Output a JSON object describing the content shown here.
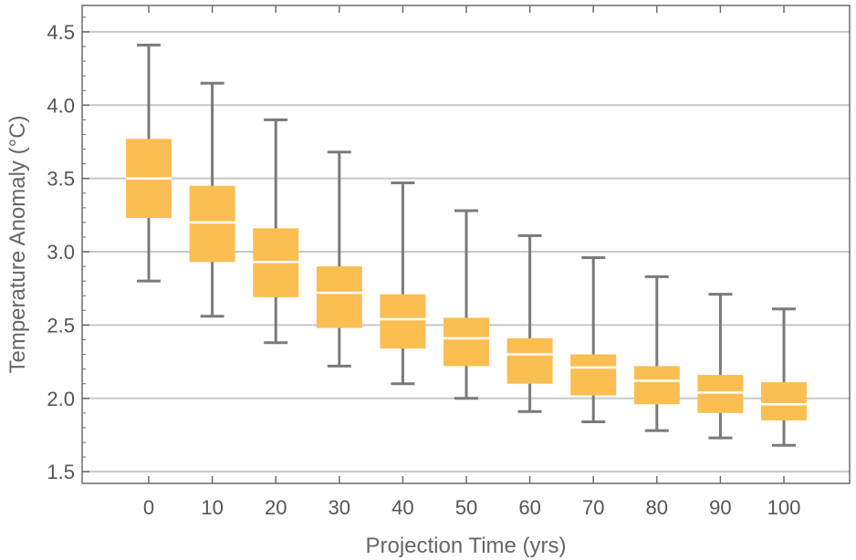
{
  "chart_data": {
    "type": "box",
    "xlabel": "Projection Time (yrs)",
    "ylabel": "Temperature Anomaly (°C)",
    "ylim": [
      1.42,
      4.68
    ],
    "y_ticks": [
      1.5,
      2.0,
      2.5,
      3.0,
      3.5,
      4.0,
      4.5
    ],
    "y_tick_labels": [
      "1.5",
      "2.0",
      "2.5",
      "3.0",
      "3.5",
      "4.0",
      "4.5"
    ],
    "grid": "horizontal",
    "colors": {
      "box": "#FBBE52",
      "whisker": "#7A7A7A",
      "median": "#ffffff",
      "grid": "#c8c8c8",
      "frame": "#6b6b6b"
    },
    "categories": [
      "0",
      "10",
      "20",
      "30",
      "40",
      "50",
      "60",
      "70",
      "80",
      "90",
      "100"
    ],
    "boxes": [
      {
        "min": 2.8,
        "q1": 3.23,
        "median": 3.5,
        "q3": 3.77,
        "max": 4.41
      },
      {
        "min": 2.56,
        "q1": 2.93,
        "median": 3.2,
        "q3": 3.45,
        "max": 4.15
      },
      {
        "min": 2.38,
        "q1": 2.69,
        "median": 2.93,
        "q3": 3.16,
        "max": 3.9
      },
      {
        "min": 2.22,
        "q1": 2.48,
        "median": 2.72,
        "q3": 2.9,
        "max": 3.68
      },
      {
        "min": 2.1,
        "q1": 2.34,
        "median": 2.54,
        "q3": 2.71,
        "max": 3.47
      },
      {
        "min": 2.0,
        "q1": 2.22,
        "median": 2.41,
        "q3": 2.55,
        "max": 3.28
      },
      {
        "min": 1.91,
        "q1": 2.1,
        "median": 2.3,
        "q3": 2.41,
        "max": 3.11
      },
      {
        "min": 1.84,
        "q1": 2.02,
        "median": 2.21,
        "q3": 2.3,
        "max": 2.96
      },
      {
        "min": 1.78,
        "q1": 1.96,
        "median": 2.12,
        "q3": 2.22,
        "max": 2.83
      },
      {
        "min": 1.73,
        "q1": 1.9,
        "median": 2.04,
        "q3": 2.16,
        "max": 2.71
      },
      {
        "min": 1.68,
        "q1": 1.85,
        "median": 1.96,
        "q3": 2.11,
        "max": 2.61
      }
    ]
  }
}
